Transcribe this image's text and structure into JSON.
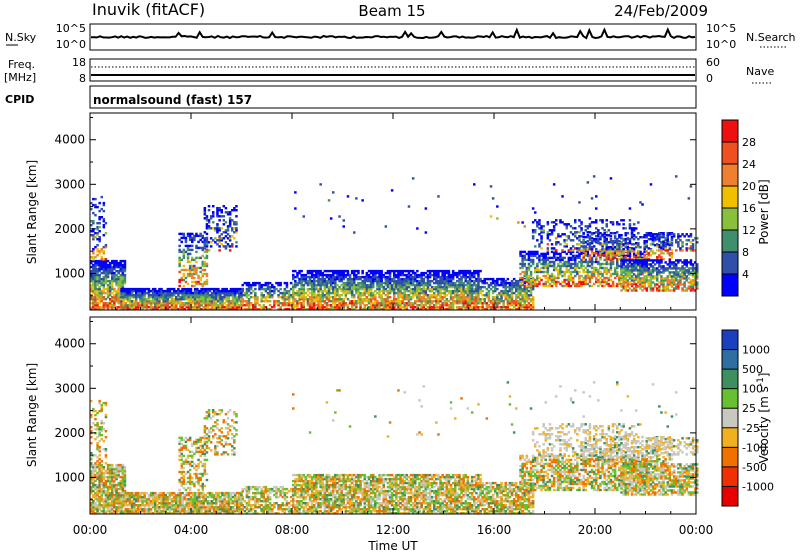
{
  "header": {
    "station": "Inuvik (fitACF)",
    "beam": "Beam 15",
    "date": "24/Feb/2009"
  },
  "noise_panel": {
    "left_label": "N.Sky",
    "right_label": "N.Search",
    "ticks_left": [
      "10^5",
      "10^0"
    ],
    "ticks_right": [
      "10^5",
      "10^0"
    ]
  },
  "freq_panel": {
    "left_label": "Freq.",
    "left_unit": "[MHz]",
    "right_label": "Nave",
    "ticks_left": [
      "18",
      "8"
    ],
    "ticks_right": [
      "60",
      "0"
    ]
  },
  "cpid": {
    "label": "CPID",
    "value": "normalsound (fast) 157"
  },
  "chart_data": [
    {
      "type": "heatmap",
      "quantity": "Power",
      "ylabel": "Slant Range [km]",
      "yticks": [
        1000,
        2000,
        3000,
        4000
      ],
      "ylim": [
        180,
        4600
      ],
      "x": [
        "00:00",
        "04:00",
        "08:00",
        "12:00",
        "16:00",
        "20:00",
        "00:00"
      ],
      "colorbar": {
        "label": "Power [dB]",
        "ticks": [
          "4",
          "8",
          "12",
          "16",
          "20",
          "24",
          "28"
        ],
        "colors": [
          "#0000ff",
          "#2f4fa8",
          "#3f8f6f",
          "#88c03c",
          "#f0c000",
          "#f08030",
          "#f05020",
          "#ee1010"
        ]
      }
    },
    {
      "type": "heatmap",
      "quantity": "Velocity",
      "ylabel": "Slant Range [km]",
      "yticks": [
        1000,
        2000,
        3000,
        4000
      ],
      "ylim": [
        180,
        4600
      ],
      "x": [
        "00:00",
        "04:00",
        "08:00",
        "12:00",
        "16:00",
        "20:00",
        "00:00"
      ],
      "xlabel": "Time UT",
      "colorbar": {
        "label": "Velocity [m s^-1]",
        "ticks": [
          "1000",
          "500",
          "100",
          "25",
          "-25",
          "-100",
          "-500",
          "-1000"
        ],
        "colors": [
          "#1a3fbf",
          "#2e6ea0",
          "#3d8f5f",
          "#66c030",
          "#c8c8c0",
          "#f0b020",
          "#f07000",
          "#f03000",
          "#e80000"
        ]
      }
    }
  ]
}
